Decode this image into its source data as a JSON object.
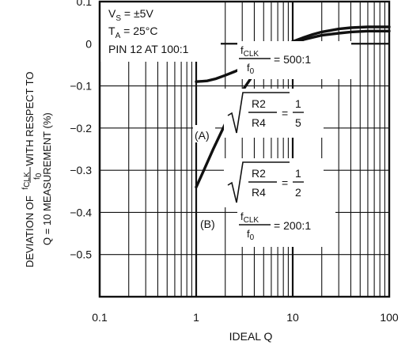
{
  "chart_data": {
    "type": "line",
    "title": "",
    "xlabel": "IDEAL Q",
    "ylabel_line1": "DEVIATION OF",
    "ylabel_frac_num": "f",
    "ylabel_frac_num_sub": "CLK",
    "ylabel_frac_den": "f",
    "ylabel_frac_den_sub": "0",
    "ylabel_line1_tail": "WITH RESPECT TO",
    "ylabel_line2": "Q = 10 MEASUREMENT (%)",
    "x_scale": "log",
    "xlim": [
      0.1,
      100
    ],
    "ylim": [
      -0.6,
      0.1
    ],
    "x_ticks": [
      {
        "value": 0.1,
        "label": "0.1"
      },
      {
        "value": 1,
        "label": "1"
      },
      {
        "value": 10,
        "label": "10"
      },
      {
        "value": 100,
        "label": "100"
      }
    ],
    "y_ticks": [
      {
        "value": 0.1,
        "label": "0.1"
      },
      {
        "value": 0,
        "label": "0"
      },
      {
        "value": -0.1,
        "label": "−0.1"
      },
      {
        "value": -0.2,
        "label": "−0.2"
      },
      {
        "value": -0.3,
        "label": "−0.3"
      },
      {
        "value": -0.4,
        "label": "−0.4"
      },
      {
        "value": -0.5,
        "label": "−0.5"
      }
    ],
    "grid": true,
    "series": [
      {
        "name": "(A)",
        "x": [
          1,
          1.3,
          1.6,
          2,
          2.5,
          3,
          4,
          5,
          6,
          7,
          8,
          10,
          13,
          16,
          20,
          30,
          40,
          60,
          100
        ],
        "y": [
          -0.09,
          -0.088,
          -0.083,
          -0.075,
          -0.066,
          -0.058,
          -0.045,
          -0.035,
          -0.026,
          -0.018,
          -0.012,
          0.0,
          0.01,
          0.015,
          0.02,
          0.025,
          0.028,
          0.03,
          0.03
        ]
      },
      {
        "name": "(B)",
        "x": [
          1,
          1.2,
          1.5,
          2,
          2.5,
          3,
          4,
          5,
          6,
          7,
          8,
          10,
          13,
          16,
          20,
          30,
          40,
          60,
          100
        ],
        "y": [
          -0.34,
          -0.3,
          -0.25,
          -0.19,
          -0.145,
          -0.112,
          -0.07,
          -0.045,
          -0.028,
          -0.016,
          -0.007,
          0.005,
          0.015,
          0.022,
          0.028,
          0.035,
          0.038,
          0.04,
          0.04
        ]
      }
    ],
    "annotations": {
      "vs": {
        "main": "V",
        "sub": "S",
        "rest": " = ±5V"
      },
      "ta": {
        "main": "T",
        "sub": "A",
        "rest": " = 25°C"
      },
      "pin": "PIN 12 AT 100:1",
      "ratio_a": {
        "num": "f",
        "num_sub": "CLK",
        "den": "f",
        "den_sub": "0",
        "value": "= 500:1"
      },
      "ratio_b": {
        "num": "f",
        "num_sub": "CLK",
        "den": "f",
        "den_sub": "0",
        "value": "= 200:1"
      },
      "sqrt_a": {
        "num": "R2",
        "den": "R4",
        "eq": "=",
        "rnum": "1",
        "rden": "5"
      },
      "sqrt_b": {
        "num": "R2",
        "den": "R4",
        "eq": "=",
        "rnum": "1",
        "rden": "2"
      },
      "label_a": "(A)",
      "label_b": "(B)"
    }
  }
}
